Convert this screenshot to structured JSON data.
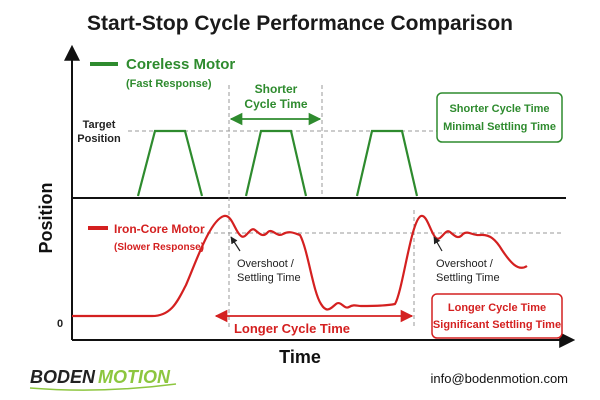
{
  "title": "Start-Stop Cycle Performance Comparison",
  "axes": {
    "y_label": "Position",
    "x_label": "Time",
    "target_label_line1": "Target",
    "target_label_line2": "Position",
    "zero_label": "0"
  },
  "coreless": {
    "name": "Coreless Motor",
    "subtitle": "(Fast Response)",
    "color": "#2e8b2e",
    "cycle_label_line1": "Shorter",
    "cycle_label_line2": "Cycle Time",
    "box_line1": "Shorter Cycle Time",
    "box_line2": "Minimal Settling Time"
  },
  "iron_core": {
    "name": "Iron-Core Motor",
    "subtitle": "(Slower Response)",
    "color": "#d42020",
    "cycle_label": "Longer Cycle Time",
    "overshoot_1_line1": "Overshoot /",
    "overshoot_1_line2": "Settling Time",
    "overshoot_2_line1": "Overshoot /",
    "overshoot_2_line2": "Settling Time",
    "box_line1": "Longer Cycle Time",
    "box_line2": "Significant Settling Time"
  },
  "footer": {
    "logo_part1": "BODEN",
    "logo_part2": "MOTION",
    "email": "info@bodenmotion.com"
  }
}
